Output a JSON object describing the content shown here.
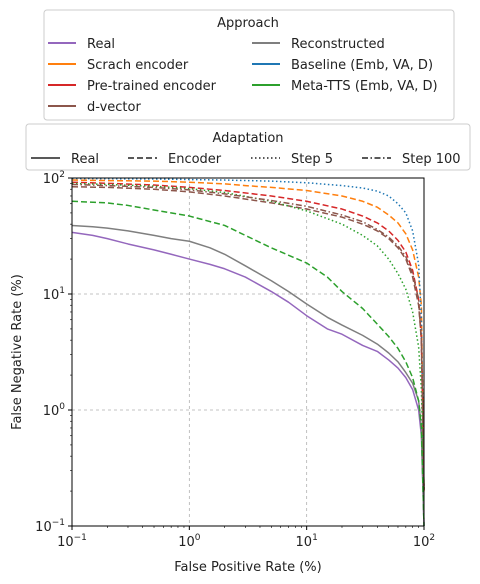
{
  "chart_data": {
    "type": "line",
    "xlabel": "False Positive Rate (%)",
    "ylabel": "False Negative Rate (%)",
    "xscale": "log",
    "yscale": "log",
    "xlim": [
      0.1,
      100
    ],
    "ylim": [
      0.1,
      100
    ],
    "x_ticks": [
      {
        "value": 0.1,
        "base": "10",
        "exp": "−1"
      },
      {
        "value": 1,
        "base": "10",
        "exp": "0"
      },
      {
        "value": 10,
        "base": "10",
        "exp": "1"
      },
      {
        "value": 100,
        "base": "10",
        "exp": "2"
      }
    ],
    "y_ticks": [
      {
        "value": 0.1,
        "base": "10",
        "exp": "−1"
      },
      {
        "value": 1,
        "base": "10",
        "exp": "0"
      },
      {
        "value": 10,
        "base": "10",
        "exp": "1"
      },
      {
        "value": 100,
        "base": "10",
        "exp": "2"
      }
    ],
    "grid": true,
    "grid_style": "dashed",
    "legend_approach": {
      "title": "Approach",
      "placement": "top",
      "entries": [
        {
          "label": "Real",
          "color": "#9467bd"
        },
        {
          "label": "Scrach encoder",
          "color": "#ff7f0e"
        },
        {
          "label": "Pre-trained encoder",
          "color": "#d62728"
        },
        {
          "label": "d-vector",
          "color": "#8c564b"
        },
        {
          "label": "Reconstructed",
          "color": "#7f7f7f"
        },
        {
          "label": "Baseline (Emb, VA, D)",
          "color": "#1f77b4"
        },
        {
          "label": "Meta-TTS (Emb, VA, D)",
          "color": "#2ca02c"
        }
      ]
    },
    "legend_adaptation": {
      "title": "Adaptation",
      "placement": "top",
      "entries": [
        {
          "label": "Real",
          "dash": "solid"
        },
        {
          "label": "Encoder",
          "dash": "dashed"
        },
        {
          "label": "Step 5",
          "dash": "dotted"
        },
        {
          "label": "Step 100",
          "dash": "dashdot"
        }
      ]
    },
    "series": [
      {
        "color": "#9467bd",
        "dash": "solid",
        "x": [
          0.1,
          0.15,
          0.2,
          0.3,
          0.5,
          0.7,
          1,
          1.5,
          2,
          3,
          5,
          7,
          10,
          15,
          20,
          30,
          40,
          50,
          60,
          70,
          80,
          90,
          95,
          100
        ],
        "y": [
          34,
          32,
          30,
          27,
          24,
          22,
          20,
          18,
          16.5,
          14,
          10.5,
          8.5,
          6.5,
          5,
          4.5,
          3.6,
          3.2,
          2.7,
          2.3,
          1.9,
          1.5,
          1.0,
          0.6,
          0.1
        ]
      },
      {
        "color": "#7f7f7f",
        "dash": "solid",
        "x": [
          0.1,
          0.15,
          0.2,
          0.3,
          0.5,
          0.7,
          1,
          1.5,
          2,
          3,
          5,
          7,
          10,
          15,
          20,
          30,
          40,
          50,
          60,
          70,
          80,
          90,
          95,
          100
        ],
        "y": [
          39,
          38,
          37,
          35,
          32,
          30,
          28.5,
          25,
          22,
          17.5,
          13,
          10.5,
          8.2,
          6.3,
          5.4,
          4.4,
          3.7,
          3.1,
          2.6,
          2.1,
          1.7,
          1.2,
          0.7,
          0.1
        ]
      },
      {
        "color": "#ff7f0e",
        "dash": "dashed",
        "x": [
          0.1,
          0.2,
          0.5,
          1,
          2,
          3,
          5,
          10,
          20,
          30,
          40,
          50,
          60,
          70,
          80,
          90,
          95,
          100
        ],
        "y": [
          96,
          95,
          94,
          92,
          89,
          86,
          83,
          78,
          70,
          63,
          56,
          48,
          41,
          33,
          24,
          14,
          8,
          0.2
        ]
      },
      {
        "color": "#1f77b4",
        "dash": "dotted",
        "x": [
          0.1,
          0.2,
          0.5,
          1,
          2,
          5,
          10,
          20,
          30,
          40,
          50,
          60,
          70,
          80,
          90,
          95,
          100
        ],
        "y": [
          99,
          98.5,
          98,
          97,
          96,
          94,
          91,
          86,
          82,
          77,
          70,
          60,
          50,
          35,
          18,
          6,
          0.2
        ]
      },
      {
        "color": "#d62728",
        "dash": "dashed",
        "x": [
          0.1,
          0.2,
          0.5,
          1,
          2,
          5,
          10,
          20,
          30,
          40,
          50,
          60,
          70,
          80,
          90,
          95,
          100
        ],
        "y": [
          92,
          90,
          87,
          83,
          78,
          70,
          63,
          54,
          47,
          41,
          35,
          29,
          23,
          16,
          9,
          4,
          0.2
        ]
      },
      {
        "color": "#8c564b",
        "dash": "dashed",
        "x": [
          0.1,
          0.2,
          0.5,
          1,
          2,
          5,
          10,
          20,
          30,
          40,
          50,
          60,
          70,
          80,
          90,
          95,
          100
        ],
        "y": [
          84,
          83,
          80,
          76,
          70,
          61,
          54,
          46,
          40,
          35,
          30,
          25,
          20,
          14,
          8,
          4,
          0.2
        ]
      },
      {
        "color": "#2ca02c",
        "dash": "dotted",
        "x": [
          0.1,
          0.2,
          0.5,
          1,
          2,
          5,
          10,
          20,
          30,
          40,
          50,
          60,
          70,
          80,
          90,
          95,
          100
        ],
        "y": [
          90,
          88,
          85,
          81,
          75,
          63,
          52,
          40,
          32,
          26,
          20,
          15,
          11,
          7,
          3.5,
          1.5,
          0.2
        ]
      },
      {
        "color": "#8c564b",
        "dash": "dashdot",
        "x": [
          0.1,
          0.2,
          0.5,
          1,
          2,
          5,
          10,
          20,
          30,
          40,
          50,
          60,
          70,
          80,
          90,
          95,
          100
        ],
        "y": [
          88,
          86,
          83,
          79,
          73,
          64,
          57,
          48,
          42,
          36,
          31,
          26,
          21,
          15,
          9,
          4,
          0.2
        ]
      },
      {
        "color": "#2ca02c",
        "dash": "dashed",
        "x": [
          0.1,
          0.2,
          0.3,
          0.5,
          1,
          2,
          3,
          5,
          10,
          15,
          20,
          30,
          40,
          50,
          60,
          70,
          80,
          90,
          95,
          100
        ],
        "y": [
          63,
          61,
          58,
          53,
          47,
          39,
          32,
          25,
          18.5,
          14,
          10.5,
          7.5,
          5.5,
          4.3,
          3.4,
          2.6,
          1.9,
          1.2,
          0.7,
          0.1
        ]
      }
    ]
  }
}
